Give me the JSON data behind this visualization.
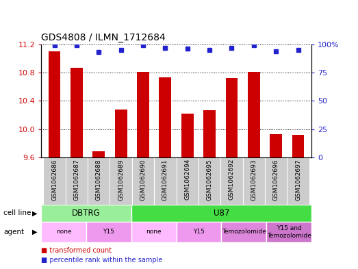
{
  "title": "GDS4808 / ILMN_1712684",
  "samples": [
    "GSM1062686",
    "GSM1062687",
    "GSM1062688",
    "GSM1062689",
    "GSM1062690",
    "GSM1062691",
    "GSM1062694",
    "GSM1062695",
    "GSM1062692",
    "GSM1062693",
    "GSM1062696",
    "GSM1062697"
  ],
  "bar_values": [
    11.1,
    10.87,
    9.69,
    10.28,
    10.81,
    10.73,
    10.22,
    10.27,
    10.72,
    10.81,
    9.93,
    9.92
  ],
  "percentile_values": [
    99,
    99,
    93,
    95,
    99,
    97,
    96,
    95,
    97,
    99,
    94,
    95
  ],
  "bar_color": "#cc0000",
  "dot_color": "#2222cc",
  "ylim_left": [
    9.6,
    11.2
  ],
  "ylim_right": [
    0,
    100
  ],
  "yticks_left": [
    9.6,
    10.0,
    10.4,
    10.8,
    11.2
  ],
  "yticks_right": [
    0,
    25,
    50,
    75,
    100
  ],
  "cell_line_groups": [
    {
      "label": "DBTRG",
      "start": 0,
      "end": 3,
      "color": "#99ee99"
    },
    {
      "label": "U87",
      "start": 4,
      "end": 11,
      "color": "#44dd44"
    }
  ],
  "agent_groups": [
    {
      "label": "none",
      "start": 0,
      "end": 1,
      "color": "#ffbbff"
    },
    {
      "label": "Y15",
      "start": 2,
      "end": 3,
      "color": "#ee99ee"
    },
    {
      "label": "none",
      "start": 4,
      "end": 5,
      "color": "#ffbbff"
    },
    {
      "label": "Y15",
      "start": 6,
      "end": 7,
      "color": "#ee99ee"
    },
    {
      "label": "Temozolomide",
      "start": 8,
      "end": 9,
      "color": "#dd88dd"
    },
    {
      "label": "Y15 and\nTemozolomide",
      "start": 10,
      "end": 11,
      "color": "#cc77cc"
    }
  ],
  "legend_items": [
    {
      "label": "transformed count",
      "color": "#cc0000"
    },
    {
      "label": "percentile rank within the sample",
      "color": "#2222cc"
    }
  ],
  "cell_line_label": "cell line",
  "agent_label": "agent",
  "sample_box_color": "#cccccc",
  "background_color": "#ffffff",
  "tick_color_left": "#cc0000",
  "tick_color_right": "#2222cc"
}
